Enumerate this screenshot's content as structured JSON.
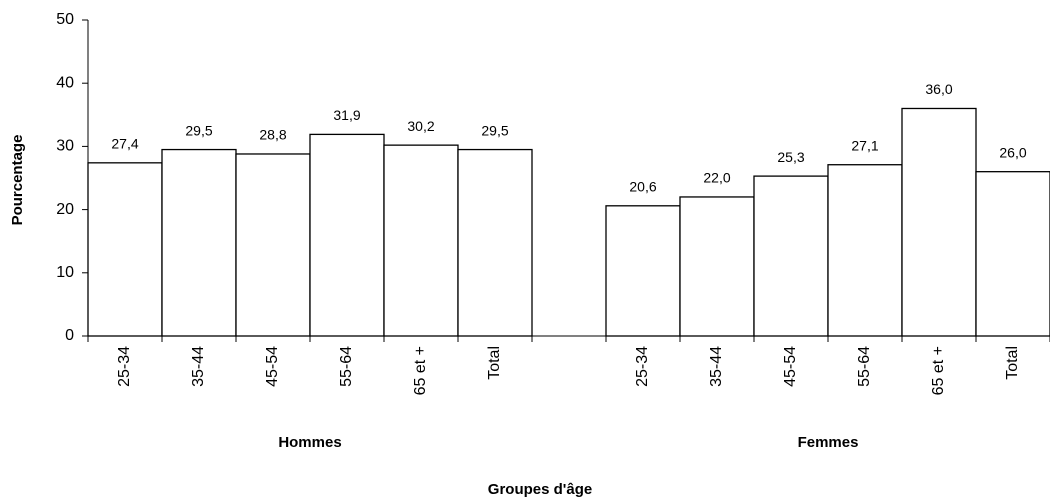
{
  "chart_data": {
    "type": "bar",
    "x_label": "Groupes d'âge",
    "y_label": "Pourcentage",
    "groups": [
      "Hommes",
      "Femmes"
    ],
    "categories": [
      "25-34",
      "35-44",
      "45-54",
      "55-64",
      "65 et +",
      "Total",
      null,
      "25-34",
      "35-44",
      "45-54",
      "55-64",
      "65 et +",
      "Total"
    ],
    "values": [
      27.4,
      29.5,
      28.8,
      31.9,
      30.2,
      29.5,
      null,
      20.6,
      22.0,
      25.3,
      27.1,
      36.0,
      26.0
    ],
    "value_labels": [
      "27,4",
      "29,5",
      "28,8",
      "31,9",
      "30,2",
      "29,5",
      null,
      "20,6",
      "22,0",
      "25,3",
      "27,1",
      "36,0",
      "26,0"
    ],
    "color": "#ffffff",
    "edge_color": "#000000",
    "ylim": [
      0,
      50
    ],
    "yticks": [
      0,
      10,
      20,
      30,
      40,
      50
    ],
    "grid": false
  }
}
